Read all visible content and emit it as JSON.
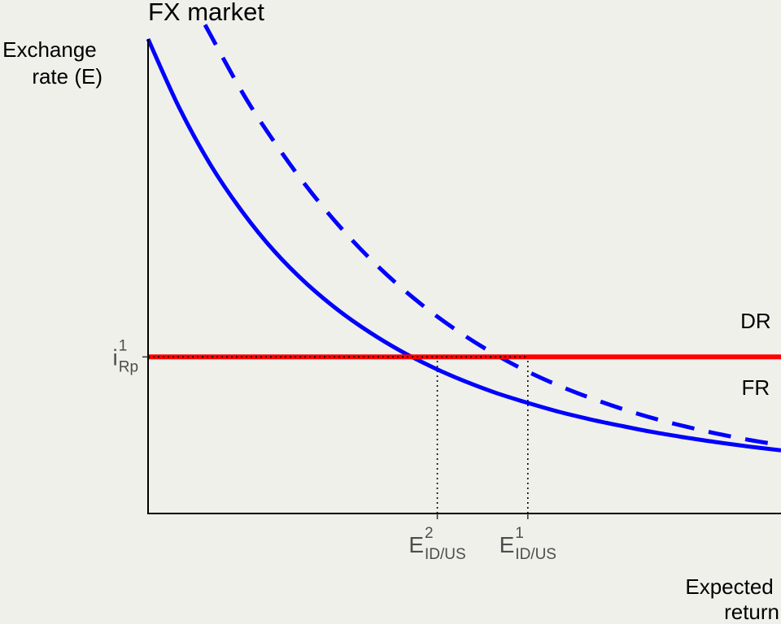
{
  "chart_data": {
    "type": "line",
    "title": "FX market",
    "ylabel": "Exchange rate (E)",
    "ylabel_lines": [
      "Exchange",
      "rate (E)"
    ],
    "xlabel": "Expected return",
    "xlabel_lines": [
      "Expected",
      "return"
    ],
    "grid": false,
    "xlim": [
      0,
      10
    ],
    "ylim": [
      0,
      10
    ],
    "series": [
      {
        "name": "DR",
        "style": "solid",
        "color": "#ff0000",
        "x": [
          0,
          10
        ],
        "y": [
          3.3,
          3.3
        ]
      },
      {
        "name": "FR",
        "style": "solid",
        "color": "#0000ff",
        "x": [
          0,
          0.5,
          1,
          1.5,
          2,
          2.5,
          3,
          3.5,
          4,
          4.5,
          5,
          5.5,
          6,
          6.5,
          7,
          7.5,
          8,
          8.5,
          9,
          9.5,
          10
        ],
        "y": [
          10.0,
          8.53,
          7.32,
          6.34,
          5.52,
          4.85,
          4.29,
          3.82,
          3.42,
          3.08,
          2.79,
          2.54,
          2.33,
          2.14,
          1.98,
          1.84,
          1.71,
          1.6,
          1.5,
          1.41,
          1.33
        ]
      },
      {
        "name": "",
        "style": "dashed",
        "color": "#0000ff",
        "x": [
          0.9,
          1.5,
          2,
          2.5,
          3,
          3.5,
          4,
          4.5,
          5,
          5.5,
          6,
          6.5,
          7,
          7.5,
          8,
          8.5,
          9,
          9.5,
          10
        ],
        "y": [
          10.3,
          8.85,
          7.82,
          6.9,
          6.09,
          5.38,
          4.76,
          4.22,
          3.75,
          3.34,
          2.99,
          2.69,
          2.43,
          2.2,
          2.0,
          1.83,
          1.68,
          1.55,
          1.44
        ]
      }
    ],
    "curve_labels": [
      {
        "text": "DR",
        "x": 9.6,
        "y": 3.9
      },
      {
        "text": "FR",
        "x": 9.6,
        "y": 2.5
      }
    ],
    "y_ticks": [
      {
        "value": 3.3,
        "main": "i",
        "sup": "1",
        "sub": "Rp"
      }
    ],
    "x_ticks": [
      {
        "value": 4.57,
        "main": "E",
        "sup": "2",
        "sub": "ID/US"
      },
      {
        "value": 6.0,
        "main": "E",
        "sup": "1",
        "sub": "ID/US"
      }
    ],
    "reference_lines": [
      {
        "orientation": "vertical",
        "x": 4.57,
        "y_from": 0,
        "y_to": 3.3
      },
      {
        "orientation": "vertical",
        "x": 6.0,
        "y_from": 0,
        "y_to": 3.3
      },
      {
        "orientation": "horizontal",
        "y": 3.3,
        "x_from": 0,
        "x_to": 6.0
      }
    ]
  }
}
